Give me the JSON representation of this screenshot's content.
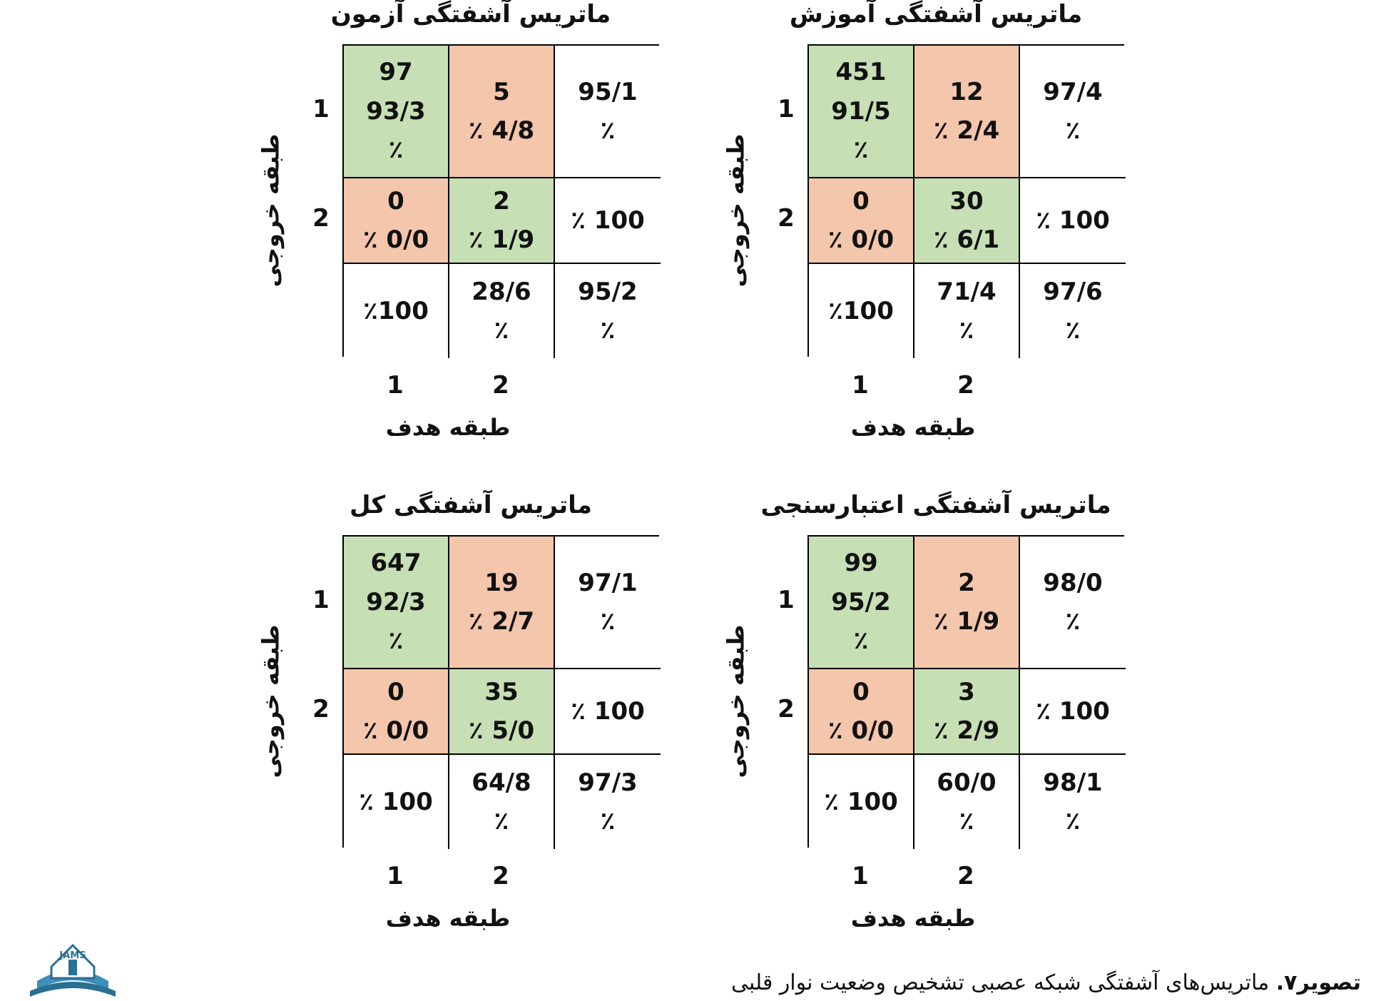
{
  "colors": {
    "correct": "#c6dfb4",
    "wrong": "#f4c6ab",
    "plain": "#ffffff"
  },
  "chart_data": [
    {
      "type": "table",
      "title": "ماتریس آشفتگی آموزش",
      "xlabel": "طبقه هدف",
      "ylabel": "طبقه خروجی",
      "col_ticks": [
        "1",
        "2"
      ],
      "row_ticks": [
        "1",
        "2"
      ],
      "cells": [
        [
          {
            "count": "451",
            "pct": "91/5",
            "pct_sym": "٪",
            "kind": "correct"
          },
          {
            "count": "12",
            "pct": "٪ 2/4",
            "pct_sym": "",
            "kind": "wrong"
          },
          {
            "count": "97/4",
            "pct": "",
            "pct_sym": "٪",
            "kind": "plain"
          }
        ],
        [
          {
            "count": "0",
            "pct": "٪ 0/0",
            "pct_sym": "",
            "kind": "wrong"
          },
          {
            "count": "30",
            "pct": "٪ 6/1",
            "pct_sym": "",
            "kind": "correct"
          },
          {
            "count": "٪ 100",
            "pct": "",
            "pct_sym": "",
            "kind": "plain"
          }
        ],
        [
          {
            "count": "٪100",
            "pct": "",
            "pct_sym": "",
            "kind": "plain"
          },
          {
            "count": "71/4",
            "pct": "",
            "pct_sym": "٪",
            "kind": "plain"
          },
          {
            "count": "97/6",
            "pct": "",
            "pct_sym": "٪",
            "kind": "plain"
          }
        ]
      ]
    },
    {
      "type": "table",
      "title": "ماتریس آشفتگی آزمون",
      "xlabel": "طبقه هدف",
      "ylabel": "طبقه خروجی",
      "col_ticks": [
        "1",
        "2"
      ],
      "row_ticks": [
        "1",
        "2"
      ],
      "cells": [
        [
          {
            "count": "97",
            "pct": "93/3",
            "pct_sym": "٪",
            "kind": "correct"
          },
          {
            "count": "5",
            "pct": "٪ 4/8",
            "pct_sym": "",
            "kind": "wrong"
          },
          {
            "count": "95/1",
            "pct": "",
            "pct_sym": "٪",
            "kind": "plain"
          }
        ],
        [
          {
            "count": "0",
            "pct": "٪ 0/0",
            "pct_sym": "",
            "kind": "wrong"
          },
          {
            "count": "2",
            "pct": "٪ 1/9",
            "pct_sym": "",
            "kind": "correct"
          },
          {
            "count": "٪ 100",
            "pct": "",
            "pct_sym": "",
            "kind": "plain"
          }
        ],
        [
          {
            "count": "٪100",
            "pct": "",
            "pct_sym": "",
            "kind": "plain"
          },
          {
            "count": "28/6",
            "pct": "",
            "pct_sym": "٪",
            "kind": "plain"
          },
          {
            "count": "95/2",
            "pct": "",
            "pct_sym": "٪",
            "kind": "plain"
          }
        ]
      ]
    },
    {
      "type": "table",
      "title": "ماتریس آشفتگی اعتبارسنجی",
      "xlabel": "طبقه هدف",
      "ylabel": "طبقه خروجی",
      "col_ticks": [
        "1",
        "2"
      ],
      "row_ticks": [
        "1",
        "2"
      ],
      "cells": [
        [
          {
            "count": "99",
            "pct": "95/2",
            "pct_sym": "٪",
            "kind": "correct"
          },
          {
            "count": "2",
            "pct": "٪ 1/9",
            "pct_sym": "",
            "kind": "wrong"
          },
          {
            "count": "98/0",
            "pct": "",
            "pct_sym": "٪",
            "kind": "plain"
          }
        ],
        [
          {
            "count": "0",
            "pct": "٪ 0/0",
            "pct_sym": "",
            "kind": "wrong"
          },
          {
            "count": "3",
            "pct": "٪ 2/9",
            "pct_sym": "",
            "kind": "correct"
          },
          {
            "count": "٪ 100",
            "pct": "",
            "pct_sym": "",
            "kind": "plain"
          }
        ],
        [
          {
            "count": "٪ 100",
            "pct": "",
            "pct_sym": "",
            "kind": "plain"
          },
          {
            "count": "60/0",
            "pct": "",
            "pct_sym": "٪",
            "kind": "plain"
          },
          {
            "count": "98/1",
            "pct": "",
            "pct_sym": "٪",
            "kind": "plain"
          }
        ]
      ]
    },
    {
      "type": "table",
      "title": "ماتریس آشفتگی کل",
      "xlabel": "طبقه هدف",
      "ylabel": "طبقه خروجی",
      "col_ticks": [
        "1",
        "2"
      ],
      "row_ticks": [
        "1",
        "2"
      ],
      "cells": [
        [
          {
            "count": "647",
            "pct": "92/3",
            "pct_sym": "٪",
            "kind": "correct"
          },
          {
            "count": "19",
            "pct": "٪ 2/7",
            "pct_sym": "",
            "kind": "wrong"
          },
          {
            "count": "97/1",
            "pct": "",
            "pct_sym": "٪",
            "kind": "plain"
          }
        ],
        [
          {
            "count": "0",
            "pct": "٪ 0/0",
            "pct_sym": "",
            "kind": "wrong"
          },
          {
            "count": "35",
            "pct": "٪ 5/0",
            "pct_sym": "",
            "kind": "correct"
          },
          {
            "count": "٪ 100",
            "pct": "",
            "pct_sym": "",
            "kind": "plain"
          }
        ],
        [
          {
            "count": "٪ 100",
            "pct": "",
            "pct_sym": "",
            "kind": "plain"
          },
          {
            "count": "64/8",
            "pct": "",
            "pct_sym": "٪",
            "kind": "plain"
          },
          {
            "count": "97/3",
            "pct": "",
            "pct_sym": "٪",
            "kind": "plain"
          }
        ]
      ]
    }
  ],
  "caption": {
    "label": "تصویر۷.",
    "text": " ماتریس‌های آشفتگی شبکه عصبی تشخیص وضعیت نوار قلبی"
  },
  "logo": {
    "text": "JAMS"
  }
}
